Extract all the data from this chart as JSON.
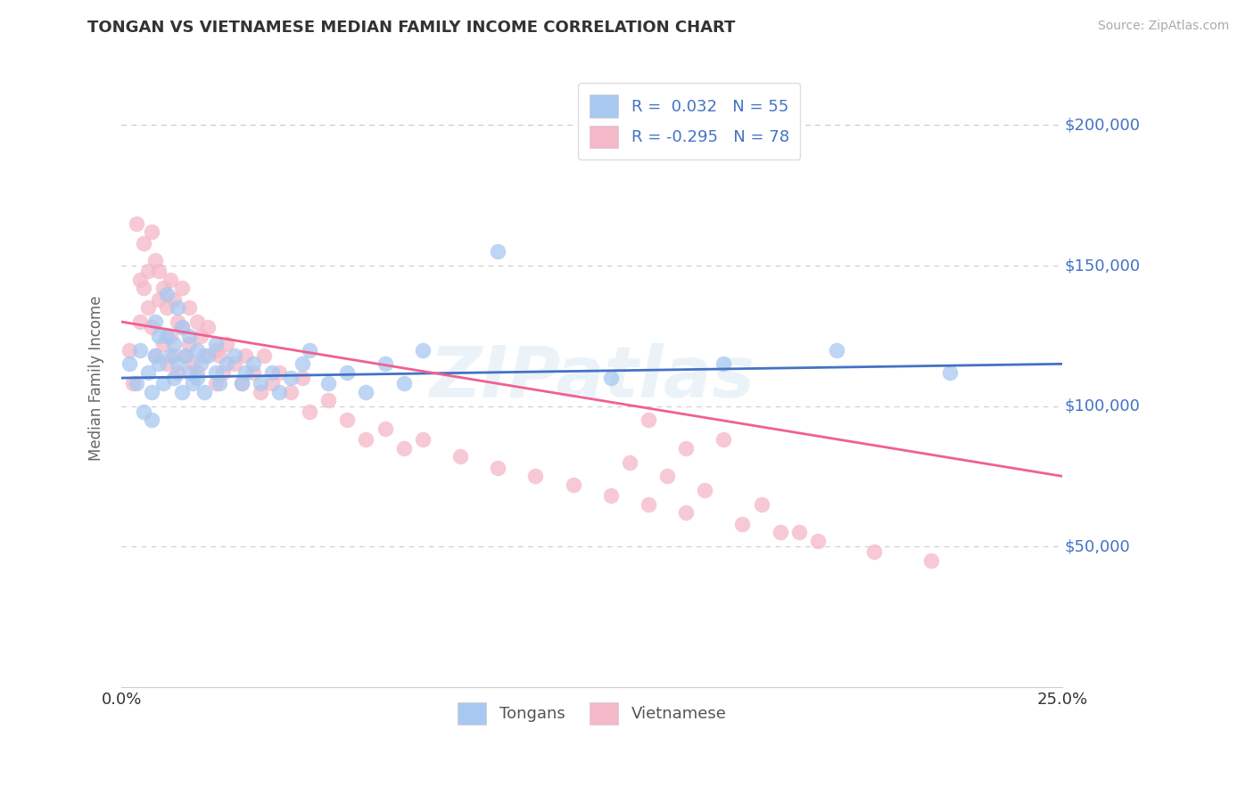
{
  "title": "TONGAN VS VIETNAMESE MEDIAN FAMILY INCOME CORRELATION CHART",
  "source": "Source: ZipAtlas.com",
  "ylabel": "Median Family Income",
  "xlim": [
    0.0,
    0.25
  ],
  "ylim": [
    0,
    220000
  ],
  "yticks": [
    50000,
    100000,
    150000,
    200000
  ],
  "ytick_labels": [
    "$50,000",
    "$100,000",
    "$150,000",
    "$200,000"
  ],
  "xticks": [
    0.0,
    0.05,
    0.1,
    0.15,
    0.2,
    0.25
  ],
  "xtick_labels": [
    "0.0%",
    "",
    "",
    "",
    "",
    "25.0%"
  ],
  "tongan_color": "#a8c8f0",
  "vietnamese_color": "#f5b8c8",
  "tongan_line_color": "#4472c4",
  "vietnamese_line_color": "#f06090",
  "legend_r_tongan": "R =  0.032",
  "legend_n_tongan": "N = 55",
  "legend_r_vietnamese": "R = -0.295",
  "legend_n_vietnamese": "N = 78",
  "watermark": "ZIPatlas",
  "background_color": "#ffffff",
  "grid_color": "#cccccc",
  "tongan_line_y0": 110000,
  "tongan_line_y1": 115000,
  "vietnamese_line_y0": 130000,
  "vietnamese_line_y1": 75000,
  "tongan_scatter": {
    "x": [
      0.002,
      0.004,
      0.005,
      0.006,
      0.007,
      0.008,
      0.008,
      0.009,
      0.009,
      0.01,
      0.01,
      0.011,
      0.012,
      0.012,
      0.013,
      0.014,
      0.014,
      0.015,
      0.015,
      0.016,
      0.016,
      0.017,
      0.018,
      0.018,
      0.019,
      0.02,
      0.02,
      0.021,
      0.022,
      0.023,
      0.025,
      0.025,
      0.026,
      0.028,
      0.03,
      0.032,
      0.033,
      0.035,
      0.037,
      0.04,
      0.042,
      0.045,
      0.048,
      0.05,
      0.055,
      0.06,
      0.065,
      0.07,
      0.075,
      0.08,
      0.1,
      0.13,
      0.16,
      0.19,
      0.22
    ],
    "y": [
      115000,
      108000,
      120000,
      98000,
      112000,
      95000,
      105000,
      118000,
      130000,
      125000,
      115000,
      108000,
      140000,
      125000,
      118000,
      110000,
      122000,
      135000,
      115000,
      128000,
      105000,
      118000,
      112000,
      125000,
      108000,
      120000,
      110000,
      115000,
      105000,
      118000,
      112000,
      122000,
      108000,
      115000,
      118000,
      108000,
      112000,
      115000,
      108000,
      112000,
      105000,
      110000,
      115000,
      120000,
      108000,
      112000,
      105000,
      115000,
      108000,
      120000,
      155000,
      110000,
      115000,
      120000,
      112000
    ]
  },
  "vietnamese_scatter": {
    "x": [
      0.002,
      0.003,
      0.004,
      0.005,
      0.005,
      0.006,
      0.006,
      0.007,
      0.007,
      0.008,
      0.008,
      0.009,
      0.009,
      0.01,
      0.01,
      0.011,
      0.011,
      0.012,
      0.012,
      0.013,
      0.013,
      0.014,
      0.014,
      0.015,
      0.015,
      0.016,
      0.016,
      0.017,
      0.018,
      0.018,
      0.019,
      0.02,
      0.02,
      0.021,
      0.022,
      0.023,
      0.025,
      0.025,
      0.026,
      0.027,
      0.028,
      0.03,
      0.032,
      0.033,
      0.035,
      0.037,
      0.038,
      0.04,
      0.042,
      0.045,
      0.048,
      0.05,
      0.055,
      0.06,
      0.065,
      0.07,
      0.075,
      0.08,
      0.09,
      0.1,
      0.11,
      0.12,
      0.13,
      0.14,
      0.15,
      0.165,
      0.175,
      0.185,
      0.2,
      0.215,
      0.135,
      0.145,
      0.14,
      0.15,
      0.155,
      0.16,
      0.17,
      0.18
    ],
    "y": [
      120000,
      108000,
      165000,
      145000,
      130000,
      158000,
      142000,
      135000,
      148000,
      162000,
      128000,
      152000,
      118000,
      148000,
      138000,
      142000,
      122000,
      135000,
      115000,
      145000,
      125000,
      138000,
      118000,
      130000,
      112000,
      142000,
      128000,
      118000,
      135000,
      122000,
      115000,
      130000,
      112000,
      125000,
      118000,
      128000,
      120000,
      108000,
      118000,
      112000,
      122000,
      115000,
      108000,
      118000,
      112000,
      105000,
      118000,
      108000,
      112000,
      105000,
      110000,
      98000,
      102000,
      95000,
      88000,
      92000,
      85000,
      88000,
      82000,
      78000,
      75000,
      72000,
      68000,
      65000,
      62000,
      58000,
      55000,
      52000,
      48000,
      45000,
      80000,
      75000,
      95000,
      85000,
      70000,
      88000,
      65000,
      55000
    ]
  }
}
